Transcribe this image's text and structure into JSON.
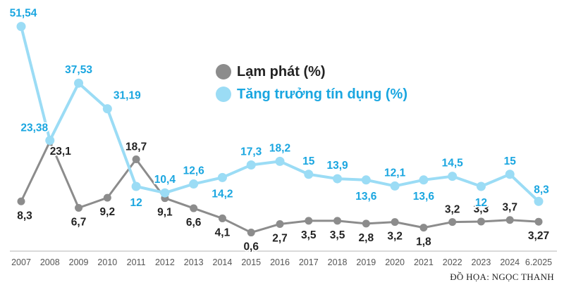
{
  "chart_data": {
    "type": "line",
    "categories": [
      "2007",
      "2008",
      "2009",
      "2010",
      "2011",
      "2012",
      "2013",
      "2014",
      "2015",
      "2016",
      "2017",
      "2018",
      "2019",
      "2020",
      "2021",
      "2022",
      "2023",
      "2024",
      "6.2025"
    ],
    "series": [
      {
        "name": "Lạm phát (%)",
        "color": "#8c8c8c",
        "values": [
          8.3,
          23.1,
          6.7,
          9.2,
          18.7,
          9.1,
          6.6,
          4.1,
          0.6,
          2.7,
          3.5,
          3.5,
          2.8,
          3.2,
          1.8,
          3.2,
          3.3,
          3.7,
          3.27
        ],
        "labels": [
          "8,3",
          "23,1",
          "6,7",
          "9,2",
          "18,7",
          "9,1",
          "6,6",
          "4,1",
          "0,6",
          "2,7",
          "3,5",
          "3,5",
          "2,8",
          "3,2",
          "1,8",
          "3,2",
          "3,3",
          "3,7",
          "3,27"
        ]
      },
      {
        "name": "Tăng trưởng tín dụng (%)",
        "color": "#9bdcf5",
        "label_color": "#1aa6e0",
        "values": [
          51.54,
          23.38,
          37.53,
          31.19,
          12,
          10.4,
          12.6,
          14.2,
          17.3,
          18.2,
          15,
          13.9,
          13.6,
          12.1,
          13.6,
          14.5,
          12,
          15,
          8.3
        ],
        "labels": [
          "51,54",
          "23,38",
          "37,53",
          "31,19",
          "12",
          "10,4",
          "12,6",
          "14,2",
          "17,3",
          "18,2",
          "15",
          "13,9",
          "13,6",
          "12,1",
          "13,6",
          "14,5",
          "12",
          "15",
          "8,3"
        ]
      }
    ],
    "grid": false
  },
  "legend": {
    "inflation_label": "Lạm phát (%)",
    "credit_label": "Tăng trưởng tín dụng (%)"
  },
  "credit_note": "ĐỒ HỌA: NGỌC THANH"
}
